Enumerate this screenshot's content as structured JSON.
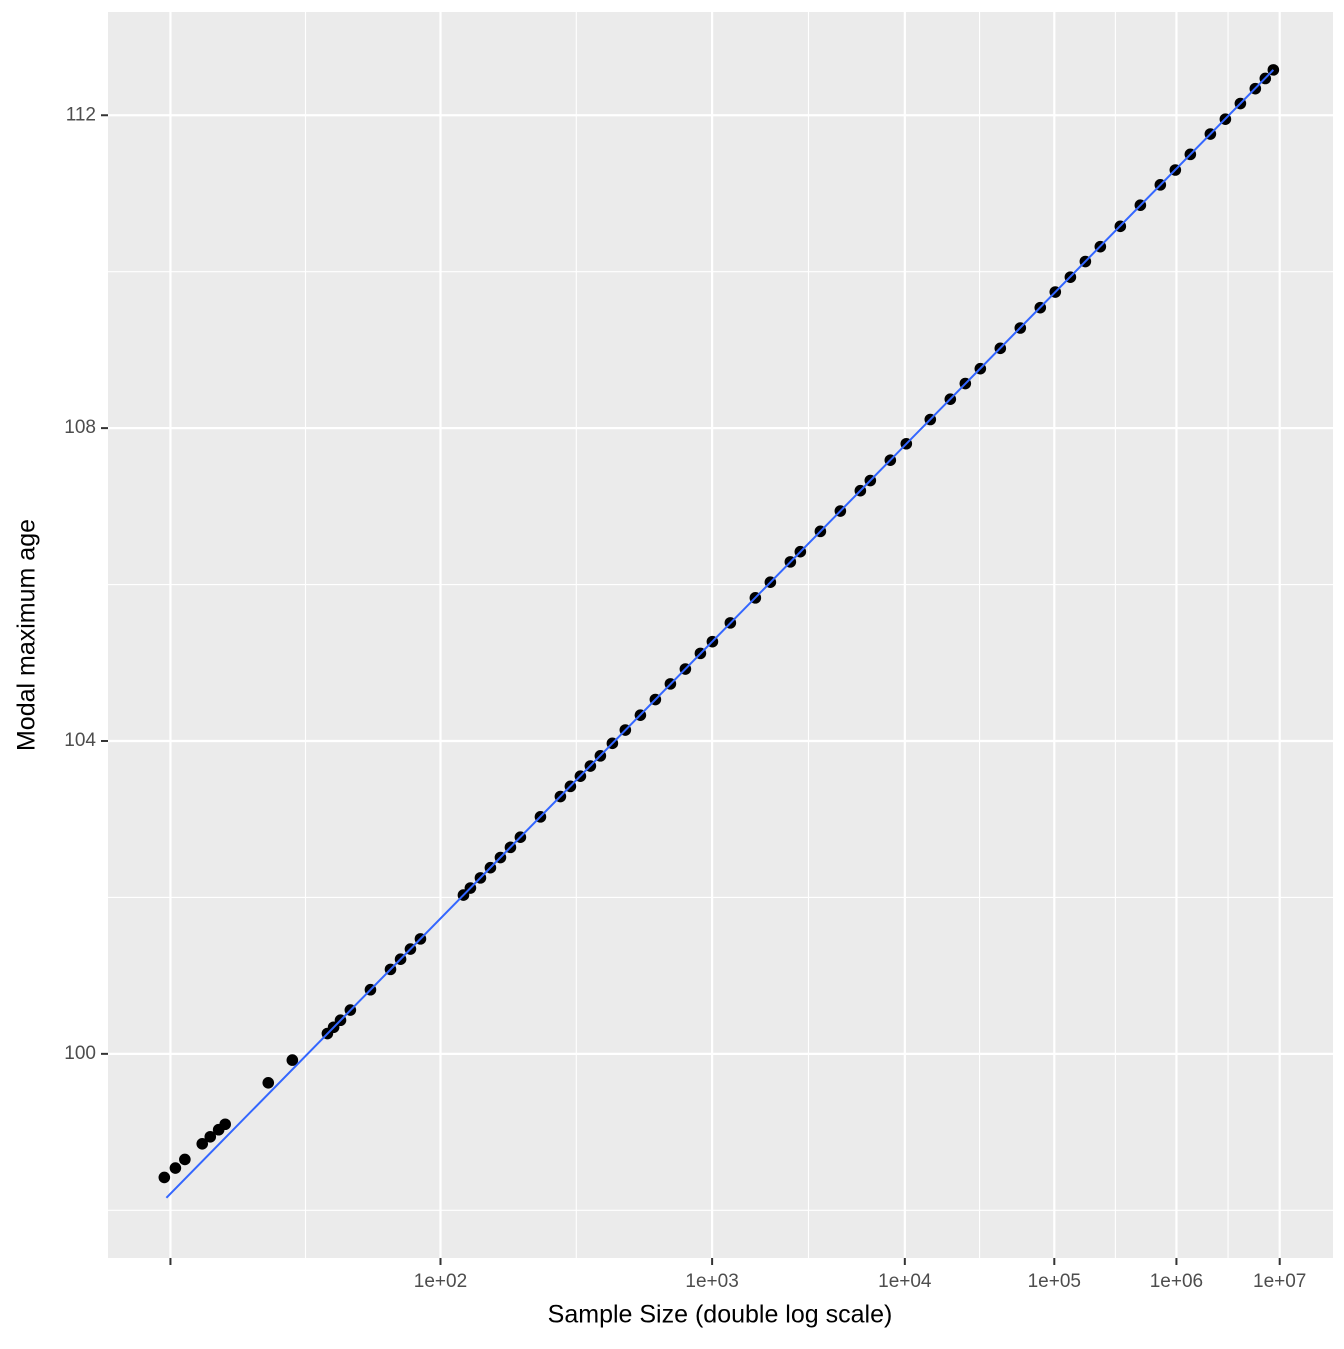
{
  "chart_data": {
    "type": "scatter",
    "xlabel": "Sample Size (double log scale)",
    "ylabel": "Modal maximum age",
    "x_scale": "log-log",
    "xlim": [
      16.5,
      38000000
    ],
    "ylim": [
      97.39,
      113.32
    ],
    "xticks": [
      {
        "value": 21.7,
        "label": null
      },
      {
        "value": 100,
        "label": "1e+02"
      },
      {
        "value": 1000,
        "label": "1e+03"
      },
      {
        "value": 10000,
        "label": "1e+04"
      },
      {
        "value": 100000,
        "label": "1e+05"
      },
      {
        "value": 1000000,
        "label": "1e+06"
      },
      {
        "value": 10000000,
        "label": "1e+07"
      }
    ],
    "yticks": [
      100,
      104,
      108,
      112
    ],
    "grid": true,
    "color": "#000000",
    "x": [
      21.1,
      22.2,
      23.2,
      25.2,
      26.2,
      27.3,
      28.2,
      35.2,
      40.1,
      48.9,
      50.7,
      52.8,
      56.0,
      63.3,
      71.8,
      76.6,
      81.7,
      87.3,
      117.4,
      123.4,
      132.7,
      142.8,
      153.9,
      166.0,
      179.2,
      209.8,
      246.6,
      267.9,
      291.4,
      317.3,
      346.0,
      384.6,
      432.0,
      495.8,
      570.6,
      659.0,
      763.2,
      887.2,
      1003,
      1210,
      1585,
      1873,
      2353,
      2644,
      3359,
      4295,
      5534,
      6298,
      8209,
      10205,
      14289,
      19099,
      23878,
      30007,
      40999,
      56569,
      78777,
      101700,
      132300,
      172700,
      226800,
      329500,
      484600,
      720000,
      977300,
      1336000,
      2050000,
      2850000,
      3990000,
      5620000,
      7100000,
      8590000
    ],
    "values": [
      98.42,
      98.54,
      98.65,
      98.85,
      98.94,
      99.03,
      99.1,
      99.63,
      99.92,
      100.26,
      100.34,
      100.43,
      100.56,
      100.82,
      101.08,
      101.21,
      101.34,
      101.47,
      102.03,
      102.12,
      102.25,
      102.38,
      102.51,
      102.64,
      102.77,
      103.03,
      103.29,
      103.42,
      103.55,
      103.68,
      103.81,
      103.97,
      104.14,
      104.33,
      104.53,
      104.73,
      104.92,
      105.12,
      105.27,
      105.51,
      105.83,
      106.03,
      106.29,
      106.42,
      106.68,
      106.94,
      107.2,
      107.33,
      107.59,
      107.8,
      108.11,
      108.37,
      108.57,
      108.76,
      109.02,
      109.28,
      109.54,
      109.74,
      109.93,
      110.13,
      110.32,
      110.58,
      110.85,
      111.11,
      111.3,
      111.5,
      111.76,
      111.95,
      112.15,
      112.34,
      112.47,
      112.58
    ],
    "fit_line": {
      "x": [
        21.3,
        8590000
      ],
      "values": [
        98.16,
        112.58
      ],
      "color": "#3366FF"
    }
  }
}
